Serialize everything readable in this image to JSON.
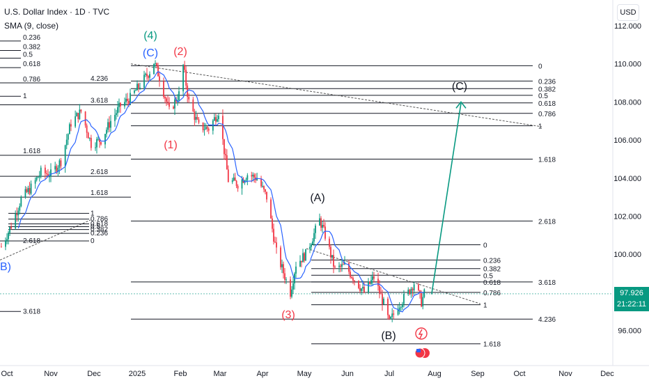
{
  "header": {
    "symbol_line": "U.S. Dollar Index · 1D · TVC",
    "indicator": "SMA (9, close)"
  },
  "currency_button": "USD",
  "last_price": {
    "value": "97.926",
    "countdown": "21:22:11"
  },
  "colors": {
    "up": "#089981",
    "down": "#f23645",
    "sma": "#2962ff",
    "arrow": "#089981",
    "label_green": "#089981",
    "label_blue": "#2962ff",
    "label_red": "#f23645"
  },
  "chart_data": {
    "type": "candlestick",
    "title": "U.S. Dollar Index · 1D · TVC",
    "x_ticks": [
      "Oct",
      "Nov",
      "Dec",
      "2025",
      "Feb",
      "Mar",
      "Apr",
      "May",
      "Jun",
      "Jul",
      "Aug",
      "Sep",
      "Oct",
      "Nov",
      "Dec"
    ],
    "y_ticks": [
      "112.000",
      "110.000",
      "108.000",
      "106.000",
      "104.000",
      "102.000",
      "100.000",
      "98.000",
      "96.000"
    ],
    "y_range": [
      94.0,
      112.5
    ],
    "close_path": [
      [
        "2024-09-27",
        100.4
      ],
      [
        "2024-10-04",
        101.5
      ],
      [
        "2024-10-11",
        102.9
      ],
      [
        "2024-10-18",
        103.5
      ],
      [
        "2024-10-25",
        104.3
      ],
      [
        "2024-11-01",
        104.2
      ],
      [
        "2024-11-08",
        104.9
      ],
      [
        "2024-11-15",
        106.9
      ],
      [
        "2024-11-22",
        107.5
      ],
      [
        "2024-11-29",
        105.8
      ],
      [
        "2024-12-06",
        106.0
      ],
      [
        "2024-12-13",
        107.0
      ],
      [
        "2024-12-20",
        107.8
      ],
      [
        "2024-12-27",
        108.2
      ],
      [
        "2025-01-03",
        108.9
      ],
      [
        "2025-01-10",
        109.6
      ],
      [
        "2025-01-13",
        110.1
      ],
      [
        "2025-01-17",
        109.3
      ],
      [
        "2025-01-24",
        107.5
      ],
      [
        "2025-01-31",
        108.4
      ],
      [
        "2025-02-03",
        109.9
      ],
      [
        "2025-02-07",
        108.0
      ],
      [
        "2025-02-14",
        106.7
      ],
      [
        "2025-02-21",
        106.6
      ],
      [
        "2025-02-28",
        107.5
      ],
      [
        "2025-03-07",
        103.9
      ],
      [
        "2025-03-14",
        103.7
      ],
      [
        "2025-03-21",
        104.2
      ],
      [
        "2025-03-28",
        104.0
      ],
      [
        "2025-04-04",
        103.0
      ],
      [
        "2025-04-11",
        100.1
      ],
      [
        "2025-04-21",
        98.0
      ],
      [
        "2025-04-25",
        99.5
      ],
      [
        "2025-05-02",
        100.0
      ],
      [
        "2025-05-12",
        101.8
      ],
      [
        "2025-05-16",
        101.0
      ],
      [
        "2025-05-23",
        99.2
      ],
      [
        "2025-05-30",
        99.4
      ],
      [
        "2025-06-06",
        98.7
      ],
      [
        "2025-06-13",
        98.0
      ],
      [
        "2025-06-20",
        98.8
      ],
      [
        "2025-06-27",
        97.4
      ],
      [
        "2025-07-01",
        96.4
      ],
      [
        "2025-07-07",
        97.3
      ],
      [
        "2025-07-14",
        98.0
      ],
      [
        "2025-07-18",
        98.5
      ],
      [
        "2025-07-23",
        97.5
      ],
      [
        "2025-07-25",
        97.926
      ]
    ],
    "wave_labels": [
      "(4)",
      "(C)",
      "(2)",
      "(1)",
      "(3)",
      "(A)",
      "(B)",
      "(C)",
      "B)"
    ],
    "fib_left_labels": [
      "0.236",
      "0.382",
      "0.5",
      "0.618",
      "0.786",
      "1",
      "4.236",
      "3.618",
      "1.618",
      "2.618",
      "1.618",
      "1",
      "0.786",
      "0.618",
      "0.5",
      "0.382",
      "0.236",
      "0",
      "2.618",
      "3.618"
    ],
    "fib_mid_labels": [
      "0",
      "0.236",
      "0.382",
      "0.5",
      "0.618",
      "0.786",
      "1",
      "1.618",
      "2.618",
      "3.618",
      "4.236"
    ],
    "fib_right_labels": [
      "0",
      "0.236",
      "0.382",
      "0.5",
      "0.618",
      "0.786",
      "1",
      "1.618"
    ],
    "projection_target": {
      "date": "2025-08-20",
      "value": 108.0,
      "label": "(C)"
    },
    "grid": false,
    "legend": "none"
  }
}
